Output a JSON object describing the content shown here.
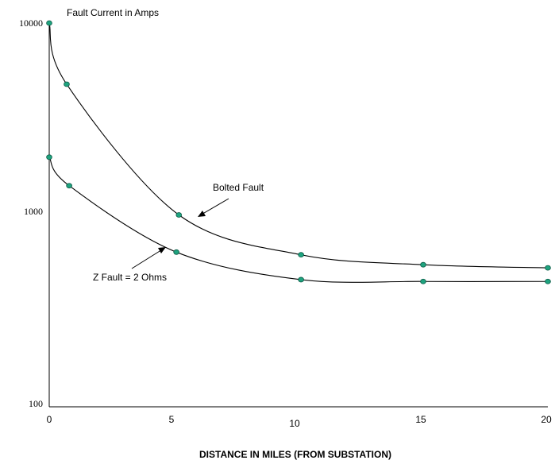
{
  "chart_data": {
    "type": "line",
    "ylabel": "Fault Current in Amps",
    "xlabel": "DISTANCE IN MILES (FROM SUBSTATION)",
    "xlim": [
      0,
      20
    ],
    "ylim": [
      100,
      10000
    ],
    "yscale": "log",
    "x_ticks": [
      0,
      5,
      10,
      15,
      20
    ],
    "y_ticks": [
      100,
      1000,
      10000
    ],
    "grid": false,
    "series": [
      {
        "name": "Bolted Fault",
        "x": [
          0,
          0.7,
          5.2,
          10.1,
          15,
          20
        ],
        "y": [
          10000,
          4800,
          1000,
          620,
          550,
          530
        ]
      },
      {
        "name": "Z Fault = 2 Ohms",
        "x": [
          0,
          0.8,
          5.1,
          10.1,
          15,
          20
        ],
        "y": [
          2000,
          1420,
          640,
          460,
          450,
          450
        ]
      }
    ],
    "annotations": [
      {
        "text": "Bolted Fault",
        "series": 0
      },
      {
        "text": "Z Fault = 2 Ohms",
        "series": 1
      }
    ]
  }
}
